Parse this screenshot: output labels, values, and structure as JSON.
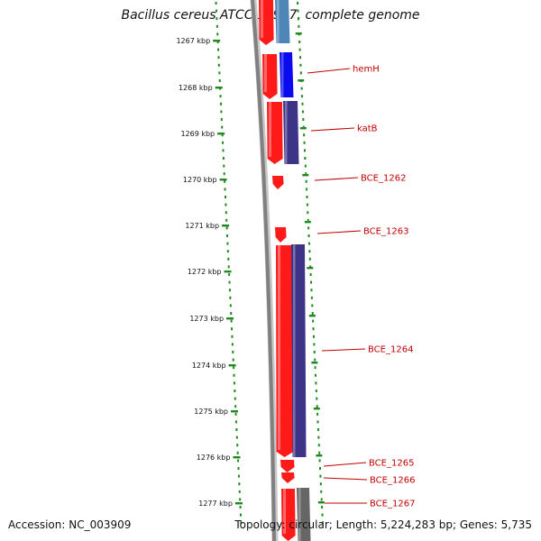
{
  "title": "Bacillus cereus ATCC 10987, complete genome",
  "footer": {
    "accession": "Accession: NC_003909",
    "stats": "Topology: circular; Length: 5,224,283 bp; Genes: 5,735"
  },
  "ruler": [
    "1267 kbp",
    "1268 kbp",
    "1269 kbp",
    "1270 kbp",
    "1271 kbp",
    "1272 kbp",
    "1273 kbp",
    "1274 kbp",
    "1275 kbp",
    "1276 kbp",
    "1277 kbp"
  ],
  "genes": [
    {
      "name": "hemH",
      "cds_color": "#ff1a1a",
      "feature_color": "#0a0aee"
    },
    {
      "name": "katB",
      "cds_color": "#ff1a1a",
      "feature_color": "#3d3488"
    },
    {
      "name": "BCE_1262",
      "cds_color": "#ff1a1a"
    },
    {
      "name": "BCE_1263",
      "cds_color": "#ff1a1a"
    },
    {
      "name": "BCE_1264",
      "cds_color": "#ff1a1a",
      "feature_color": "#3d3488"
    },
    {
      "name": "BCE_1265",
      "cds_color": "#ff1a1a"
    },
    {
      "name": "BCE_1266",
      "cds_color": "#ff1a1a"
    },
    {
      "name": "BCE_1267",
      "cds_color": "#ff1a1a",
      "feature_color": "#666666"
    }
  ],
  "colors": {
    "ruler": "#1f8a1f",
    "backbone": "#808080",
    "label": "#c00000",
    "top_feature": "#4f86b8"
  }
}
